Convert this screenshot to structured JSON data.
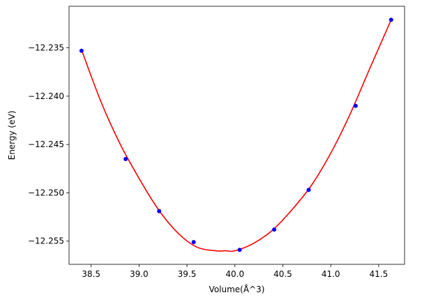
{
  "chart_data": {
    "type": "scatter",
    "title": "",
    "xlabel": "Volume(Å^3)",
    "ylabel": "Energy (eV)",
    "xlim": [
      38.27,
      41.77
    ],
    "ylim": [
      -12.2574,
      -12.2307
    ],
    "xticks": [
      38.5,
      39.0,
      39.5,
      40.0,
      40.5,
      41.0,
      41.5
    ],
    "xtick_labels": [
      "38.5",
      "39.0",
      "39.5",
      "40.0",
      "40.5",
      "41.0",
      "41.5"
    ],
    "yticks": [
      -12.235,
      -12.24,
      -12.245,
      -12.25,
      -12.255
    ],
    "ytick_labels": [
      "−12.235",
      "−12.240",
      "−12.245",
      "−12.250",
      "−12.255"
    ],
    "grid": false,
    "series": [
      {
        "kind": "points",
        "color": "#0000ff",
        "x": [
          38.4,
          38.86,
          39.21,
          39.57,
          40.05,
          40.41,
          40.77,
          41.26,
          41.63
        ],
        "y": [
          -12.2353,
          -12.2465,
          -12.2519,
          -12.2551,
          -12.2559,
          -12.2538,
          -12.2497,
          -12.241,
          -12.2321
        ]
      },
      {
        "kind": "fit-curve",
        "color": "#ff0000",
        "x": [
          38.4,
          38.6,
          38.8,
          39.0,
          39.2,
          39.4,
          39.6,
          39.8,
          39.9,
          40.0,
          40.2,
          40.4,
          40.6,
          40.8,
          41.0,
          41.2,
          41.4,
          41.63
        ],
        "y": [
          -12.2352,
          -12.2405,
          -12.2449,
          -12.2485,
          -12.2517,
          -12.2541,
          -12.2556,
          -12.256,
          -12.256,
          -12.256,
          -12.2552,
          -12.2538,
          -12.2517,
          -12.2492,
          -12.2459,
          -12.2419,
          -12.2373,
          -12.2321
        ]
      }
    ]
  }
}
